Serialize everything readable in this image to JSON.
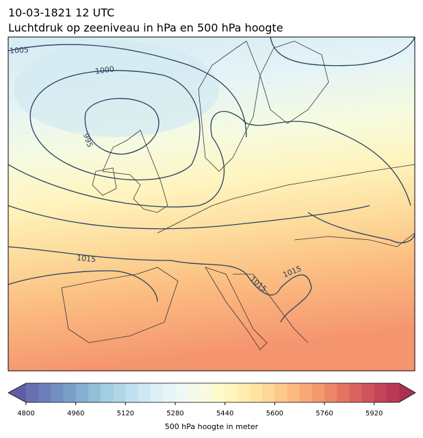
{
  "header": {
    "title": "10-03-1821 12 UTC",
    "subtitle": "Luchtdruk op zeeniveau in hPa en 500 hPa hoogte"
  },
  "map": {
    "contour_labels": [
      1005,
      1000,
      995,
      1015,
      1015,
      1015
    ],
    "contour_color": "#253f5e"
  },
  "colorbar": {
    "label": "500 hPa hoogte in meter",
    "lim": [
      4800,
      6000
    ],
    "ticks": [
      4800,
      4960,
      5120,
      5280,
      5440,
      5600,
      5760,
      5920
    ],
    "under_color": "#5e5fa5",
    "over_color": "#aa3150",
    "colors": [
      "#6b6fb2",
      "#6d7fba",
      "#7390c2",
      "#7a9fc9",
      "#86b0d2",
      "#92bfd9",
      "#a2cde2",
      "#b0d7e8",
      "#bfe0ee",
      "#cde8f3",
      "#daeff6",
      "#e6f4f7",
      "#eef8f4",
      "#f3faea",
      "#f8fbdd",
      "#fcfbcc",
      "#fff5bd",
      "#ffedb0",
      "#fee3a2",
      "#fdd795",
      "#fcc989",
      "#fbba7e",
      "#f8a976",
      "#f4986e",
      "#ee8668",
      "#e57462",
      "#da635e",
      "#cf535b",
      "#c44459",
      "#b83a56"
    ]
  }
}
